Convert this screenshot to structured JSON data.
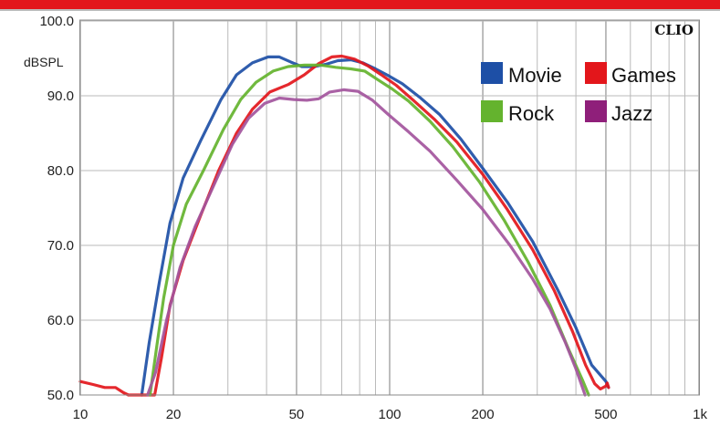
{
  "colors": {
    "top_bar": "#e3161b",
    "grid": "#b9b9b9",
    "frame": "#8a8a8a"
  },
  "unit_label": "dBSPL",
  "brand_label": "CLIO",
  "chart_data": {
    "type": "line",
    "x_scale": "log",
    "xlim": [
      10,
      1000
    ],
    "ylim": [
      50,
      100
    ],
    "x_ticks": [
      {
        "value": 10,
        "label": "10"
      },
      {
        "value": 20,
        "label": "20"
      },
      {
        "value": 50,
        "label": "50"
      },
      {
        "value": 100,
        "label": "100"
      },
      {
        "value": 200,
        "label": "200"
      },
      {
        "value": 500,
        "label": "500"
      },
      {
        "value": 1000,
        "label": "1k"
      }
    ],
    "y_ticks": [
      {
        "value": 50,
        "label": "50.0"
      },
      {
        "value": 60,
        "label": "60.0"
      },
      {
        "value": 70,
        "label": "70.0"
      },
      {
        "value": 80,
        "label": "80.0"
      },
      {
        "value": 90,
        "label": "90.0"
      },
      {
        "value": 100,
        "label": "100.0"
      }
    ],
    "x_minor_grid": [
      30,
      40,
      60,
      70,
      80,
      90,
      300,
      400,
      600,
      700,
      800,
      900
    ],
    "grid": true,
    "legend_position": "top-right",
    "series": [
      {
        "name": "Movie",
        "color": "#1d4fa6",
        "points": [
          [
            15.8,
            50
          ],
          [
            16.7,
            57
          ],
          [
            18,
            65
          ],
          [
            19.5,
            73
          ],
          [
            21.5,
            79
          ],
          [
            24.5,
            84
          ],
          [
            28.5,
            89.5
          ],
          [
            32,
            92.8
          ],
          [
            36,
            94.4
          ],
          [
            40.5,
            95.2
          ],
          [
            44,
            95.2
          ],
          [
            48,
            94.5
          ],
          [
            52,
            93.9
          ],
          [
            57,
            93.9
          ],
          [
            62,
            94.2
          ],
          [
            68,
            94.7
          ],
          [
            75,
            94.8
          ],
          [
            82,
            94.4
          ],
          [
            90,
            93.6
          ],
          [
            100,
            92.6
          ],
          [
            110,
            91.6
          ],
          [
            125,
            89.8
          ],
          [
            145,
            87.5
          ],
          [
            170,
            84.2
          ],
          [
            200,
            80.3
          ],
          [
            240,
            75.8
          ],
          [
            290,
            70.5
          ],
          [
            350,
            64
          ],
          [
            400,
            59
          ],
          [
            450,
            54
          ],
          [
            500,
            51.8
          ],
          [
            510,
            51
          ]
        ]
      },
      {
        "name": "Games",
        "color": "#e3161b",
        "points": [
          [
            10,
            51.8
          ],
          [
            11,
            51.4
          ],
          [
            12,
            51
          ],
          [
            13,
            51
          ],
          [
            13.8,
            50.3
          ],
          [
            14.3,
            50
          ],
          [
            17.4,
            50
          ],
          [
            18.3,
            55
          ],
          [
            19.5,
            62
          ],
          [
            21.5,
            68
          ],
          [
            24.5,
            74
          ],
          [
            28,
            80
          ],
          [
            32,
            85
          ],
          [
            36,
            88.2
          ],
          [
            41,
            90.5
          ],
          [
            47,
            91.5
          ],
          [
            53,
            92.8
          ],
          [
            59,
            94.3
          ],
          [
            65,
            95.2
          ],
          [
            70,
            95.3
          ],
          [
            77,
            94.9
          ],
          [
            85,
            94
          ],
          [
            94,
            92.8
          ],
          [
            105,
            91.4
          ],
          [
            120,
            89.3
          ],
          [
            140,
            86.8
          ],
          [
            165,
            83.8
          ],
          [
            200,
            79.5
          ],
          [
            240,
            74.8
          ],
          [
            290,
            69.4
          ],
          [
            340,
            64
          ],
          [
            390,
            58.5
          ],
          [
            430,
            54
          ],
          [
            460,
            51.5
          ],
          [
            480,
            50.8
          ],
          [
            500,
            51.2
          ],
          [
            505,
            51.6
          ],
          [
            510,
            51
          ]
        ]
      },
      {
        "name": "Rock",
        "color": "#64b32e",
        "points": [
          [
            16.8,
            50
          ],
          [
            17.6,
            56
          ],
          [
            18.6,
            63
          ],
          [
            20,
            70
          ],
          [
            22,
            75.5
          ],
          [
            25,
            80
          ],
          [
            29,
            85.5
          ],
          [
            33,
            89.5
          ],
          [
            37,
            91.8
          ],
          [
            42,
            93.3
          ],
          [
            47,
            93.9
          ],
          [
            53,
            94.1
          ],
          [
            60,
            94.1
          ],
          [
            67,
            93.8
          ],
          [
            75,
            93.6
          ],
          [
            83,
            93.3
          ],
          [
            92,
            92.1
          ],
          [
            102,
            90.9
          ],
          [
            115,
            89.3
          ],
          [
            135,
            86.6
          ],
          [
            160,
            83.2
          ],
          [
            195,
            78.5
          ],
          [
            235,
            73.3
          ],
          [
            280,
            67.8
          ],
          [
            330,
            62
          ],
          [
            380,
            56
          ],
          [
            420,
            52
          ],
          [
            440,
            50
          ]
        ]
      },
      {
        "name": "Jazz",
        "color": "#a3559d",
        "points": [
          [
            16.5,
            50
          ],
          [
            17.5,
            53
          ],
          [
            19,
            60
          ],
          [
            21,
            67
          ],
          [
            23.5,
            72.5
          ],
          [
            27,
            78
          ],
          [
            31,
            83.5
          ],
          [
            35,
            87
          ],
          [
            39.5,
            89
          ],
          [
            44,
            89.7
          ],
          [
            49,
            89.5
          ],
          [
            54,
            89.4
          ],
          [
            59,
            89.6
          ],
          [
            64,
            90.5
          ],
          [
            71,
            90.8
          ],
          [
            79,
            90.6
          ],
          [
            88,
            89.4
          ],
          [
            99,
            87.5
          ],
          [
            115,
            85.2
          ],
          [
            135,
            82.6
          ],
          [
            165,
            78.7
          ],
          [
            200,
            74.8
          ],
          [
            245,
            70
          ],
          [
            290,
            65.5
          ],
          [
            330,
            61.5
          ],
          [
            370,
            57
          ],
          [
            400,
            53.5
          ],
          [
            420,
            51
          ],
          [
            428,
            50
          ]
        ]
      }
    ]
  }
}
